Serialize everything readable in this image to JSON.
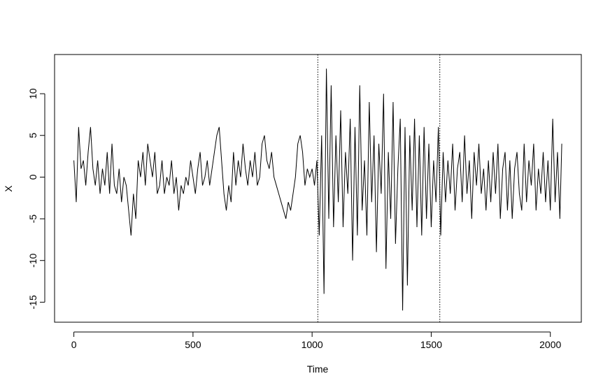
{
  "chart_data": {
    "type": "line",
    "x_label": "Time",
    "y_label": "X",
    "x": [
      0,
      10,
      20,
      30,
      40,
      50,
      60,
      70,
      80,
      90,
      100,
      110,
      120,
      130,
      140,
      150,
      160,
      170,
      180,
      190,
      200,
      210,
      220,
      230,
      240,
      250,
      260,
      270,
      280,
      290,
      300,
      310,
      320,
      330,
      340,
      350,
      360,
      370,
      380,
      390,
      400,
      410,
      420,
      430,
      440,
      450,
      460,
      470,
      480,
      490,
      500,
      510,
      520,
      530,
      540,
      550,
      560,
      570,
      580,
      590,
      600,
      610,
      620,
      630,
      640,
      650,
      660,
      670,
      680,
      690,
      700,
      710,
      720,
      730,
      740,
      750,
      760,
      770,
      780,
      790,
      800,
      810,
      820,
      830,
      840,
      850,
      860,
      870,
      880,
      890,
      900,
      910,
      920,
      930,
      940,
      950,
      960,
      970,
      980,
      990,
      1000,
      1010,
      1020,
      1030,
      1040,
      1050,
      1060,
      1070,
      1080,
      1090,
      1100,
      1110,
      1120,
      1130,
      1140,
      1150,
      1160,
      1170,
      1180,
      1190,
      1200,
      1210,
      1220,
      1230,
      1240,
      1250,
      1260,
      1270,
      1280,
      1290,
      1300,
      1310,
      1320,
      1330,
      1340,
      1350,
      1360,
      1370,
      1380,
      1390,
      1400,
      1410,
      1420,
      1430,
      1440,
      1450,
      1460,
      1470,
      1480,
      1490,
      1500,
      1510,
      1520,
      1530,
      1540,
      1550,
      1560,
      1570,
      1580,
      1590,
      1600,
      1610,
      1620,
      1630,
      1640,
      1650,
      1660,
      1670,
      1680,
      1690,
      1700,
      1710,
      1720,
      1730,
      1740,
      1750,
      1760,
      1770,
      1780,
      1790,
      1800,
      1810,
      1820,
      1830,
      1840,
      1850,
      1860,
      1870,
      1880,
      1890,
      1900,
      1910,
      1920,
      1930,
      1940,
      1950,
      1960,
      1970,
      1980,
      1990,
      2000,
      2010,
      2020,
      2030,
      2040,
      2048
    ],
    "series": [
      {
        "color": "#000000",
        "values": [
          2,
          -3,
          6,
          1,
          2,
          -1,
          3,
          6,
          1,
          -1,
          2,
          -2,
          1,
          -1,
          3,
          -2,
          4,
          -1,
          -2,
          1,
          -3,
          0,
          -1,
          -4,
          -7,
          -2,
          -5,
          2,
          0,
          3,
          -1,
          4,
          2,
          0,
          3,
          -2,
          -1,
          2,
          -2,
          0,
          -1,
          2,
          -2,
          0,
          -4,
          -1,
          -2,
          0,
          -1,
          2,
          0,
          -2,
          1,
          3,
          -1,
          0,
          2,
          -1,
          1,
          3,
          5,
          6,
          2,
          -2,
          -4,
          -1,
          -3,
          3,
          -1,
          2,
          0,
          4,
          1,
          -1,
          2,
          0,
          3,
          -1,
          0,
          4,
          5,
          2,
          1,
          3,
          0,
          -1,
          -2,
          -3,
          -4,
          -5,
          -3,
          -4,
          -2,
          0,
          4,
          5,
          3,
          -1,
          1,
          0,
          1,
          -1,
          2,
          -7,
          5,
          -14,
          13,
          -5,
          11,
          -6,
          5,
          -3,
          8,
          -6,
          3,
          -2,
          7,
          -10,
          6,
          -7,
          11,
          -4,
          2,
          -7,
          9,
          -3,
          5,
          -9,
          4,
          -2,
          10,
          -11,
          3,
          -5,
          9,
          -8,
          1,
          7,
          -16,
          6,
          -13,
          5,
          -4,
          7,
          -6,
          5,
          -7,
          6,
          -5,
          4,
          -6,
          2,
          -3,
          6,
          -7,
          3,
          -3,
          2,
          -2,
          4,
          -4,
          1,
          3,
          -3,
          5,
          -2,
          2,
          -5,
          3,
          -1,
          4,
          -2,
          1,
          -4,
          2,
          -3,
          3,
          -2,
          4,
          -5,
          1,
          3,
          -4,
          2,
          -5,
          1,
          3,
          -2,
          -4,
          4,
          -3,
          2,
          -1,
          4,
          -4,
          1,
          -2,
          3,
          -3,
          2,
          -4,
          7,
          -3,
          3,
          -5,
          4
        ]
      }
    ],
    "vlines": [
      1024,
      1536
    ],
    "xlim": [
      -81,
      2130
    ],
    "ylim": [
      -17.4,
      14.7
    ],
    "xticks": [
      0,
      500,
      1000,
      1500,
      2000
    ],
    "yticks": [
      -15,
      -10,
      -5,
      0,
      5,
      10
    ]
  }
}
